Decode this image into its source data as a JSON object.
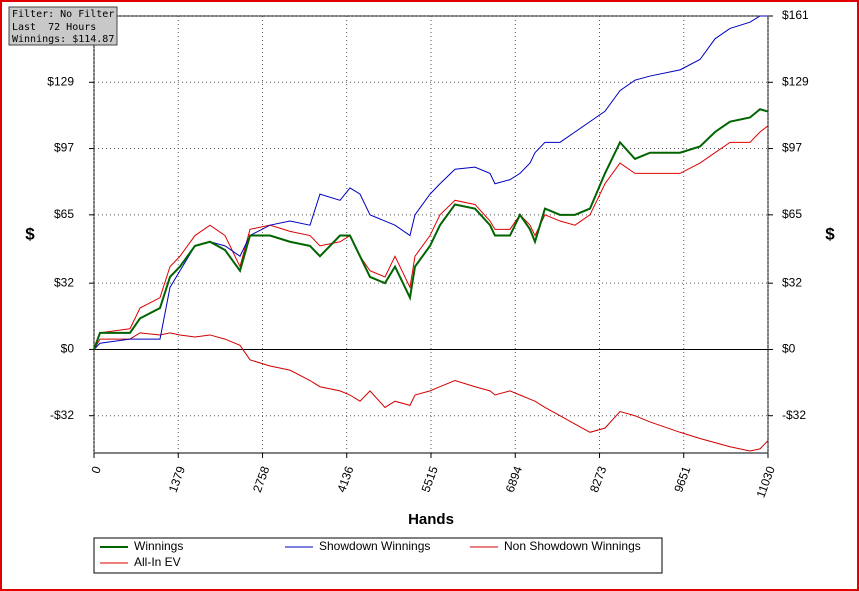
{
  "chart_data": {
    "type": "line",
    "info_box": [
      "Filter: No Filter",
      "Last  72 Hours",
      "Winnings: $114.87"
    ],
    "x_label": "Hands",
    "y_label": "$",
    "x": [
      0,
      98,
      589,
      753,
      1080,
      1244,
      1407,
      1653,
      1898,
      2144,
      2389,
      2553,
      2880,
      3207,
      3535,
      3698,
      4026,
      4189,
      4353,
      4517,
      4762,
      4926,
      5171,
      5253,
      5499,
      5662,
      5908,
      6235,
      6481,
      6562,
      6808,
      6971,
      7135,
      7217,
      7380,
      7626,
      7871,
      8117,
      8362,
      8608,
      8853,
      9099,
      9590,
      9917,
      10163,
      10408,
      10735,
      10899,
      11030
    ],
    "series": [
      {
        "name": "Non Showdown Winnings",
        "color": "#d00000",
        "values": [
          0,
          5,
          5,
          8,
          7,
          8,
          7,
          6,
          7,
          5,
          2,
          -5,
          -8,
          -10,
          -15,
          -18,
          -20,
          -22,
          -25,
          -20,
          -28,
          -25,
          -27,
          -22,
          -20,
          -18,
          -15,
          -18,
          -20,
          -22,
          -20,
          -22,
          -24,
          -25,
          -28,
          -32,
          -36,
          -40,
          -38,
          -30,
          -32,
          -35,
          -40,
          -43,
          -45,
          -47,
          -49,
          -48,
          -44
        ]
      },
      {
        "name": "All-In EV",
        "color": "#e00000",
        "values": [
          0,
          8,
          10,
          20,
          25,
          40,
          45,
          55,
          60,
          55,
          40,
          58,
          60,
          57,
          55,
          50,
          52,
          55,
          45,
          38,
          35,
          45,
          30,
          45,
          55,
          65,
          72,
          70,
          62,
          58,
          58,
          65,
          60,
          55,
          65,
          62,
          60,
          65,
          80,
          90,
          85,
          85,
          85,
          90,
          95,
          100,
          100,
          105,
          108
        ]
      },
      {
        "name": "Showdown Winnings",
        "color": "#0000c0",
        "values": [
          0,
          3,
          5,
          5,
          5,
          30,
          38,
          50,
          52,
          50,
          45,
          55,
          60,
          62,
          60,
          75,
          72,
          78,
          75,
          65,
          62,
          60,
          55,
          65,
          75,
          80,
          87,
          88,
          85,
          80,
          82,
          85,
          90,
          95,
          100,
          100,
          105,
          110,
          115,
          125,
          130,
          132,
          135,
          140,
          150,
          155,
          158,
          161,
          161
        ]
      },
      {
        "name": "Winnings",
        "color": "#006400",
        "values": [
          0,
          8,
          8,
          15,
          20,
          35,
          40,
          50,
          52,
          48,
          38,
          55,
          55,
          52,
          50,
          45,
          55,
          55,
          45,
          35,
          32,
          40,
          25,
          40,
          50,
          60,
          70,
          68,
          60,
          55,
          55,
          65,
          58,
          52,
          68,
          65,
          65,
          68,
          85,
          100,
          92,
          95,
          95,
          98,
          105,
          110,
          112,
          116,
          114.87
        ]
      }
    ],
    "legend_order": [
      3,
      2,
      0,
      1
    ],
    "xlim": [
      0,
      11030
    ],
    "xticks": [
      0,
      1379,
      2758,
      4136,
      5515,
      6894,
      8273,
      9651,
      11030
    ],
    "ylim": [
      -50,
      161
    ],
    "yticks": [
      {
        "value": -32,
        "label": "-$32"
      },
      {
        "value": 0,
        "label": "$0"
      },
      {
        "value": 32,
        "label": "$32"
      },
      {
        "value": 65,
        "label": "$65"
      },
      {
        "value": 97,
        "label": "$97"
      },
      {
        "value": 129,
        "label": "$129"
      },
      {
        "value": 161,
        "label": "$161"
      }
    ],
    "grid": true
  }
}
